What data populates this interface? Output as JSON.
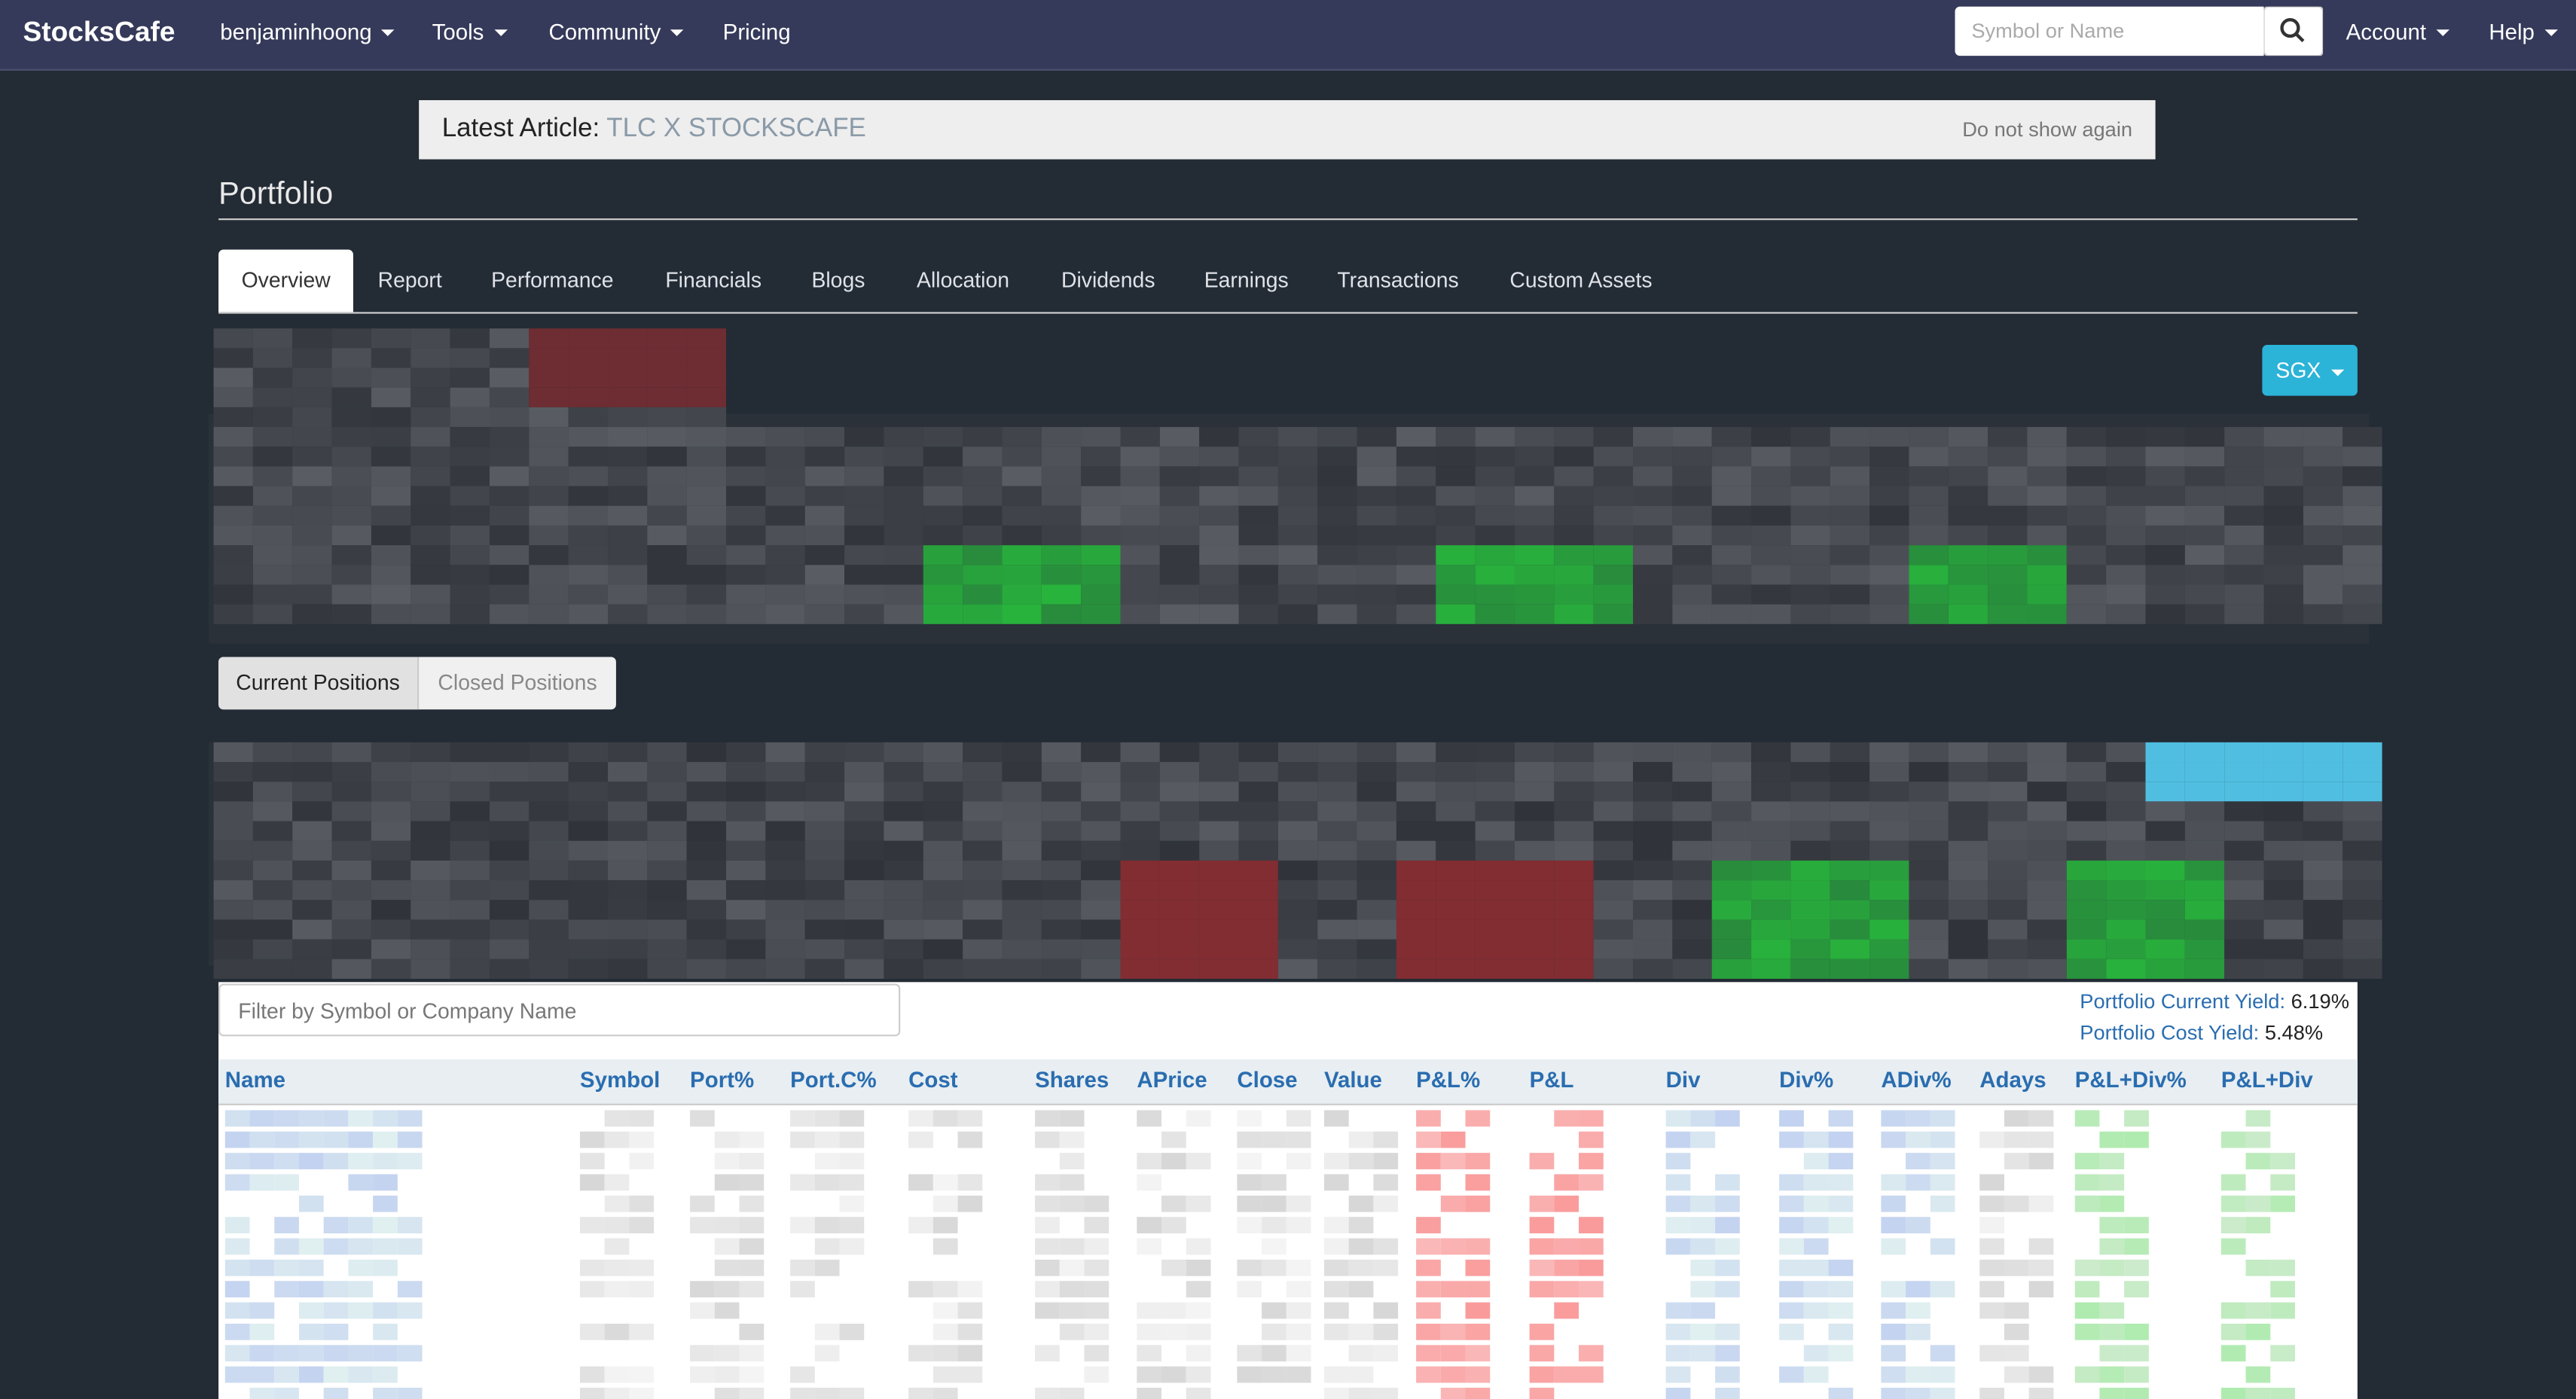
{
  "navbar": {
    "brand": "StocksCafe",
    "menu": [
      "benjaminhoong",
      "Tools",
      "Community",
      "Pricing"
    ],
    "search_placeholder": "Symbol or Name",
    "right_menu": [
      "Account",
      "Help"
    ]
  },
  "banner": {
    "label": "Latest Article:",
    "article": "TLC X STOCKSCAFE",
    "dismiss": "Do not show again"
  },
  "page": {
    "title": "Portfolio",
    "tabs": [
      "Overview",
      "Report",
      "Performance",
      "Financials",
      "Blogs",
      "Allocation",
      "Dividends",
      "Earnings",
      "Transactions",
      "Custom Assets"
    ],
    "market_button": "SGX",
    "position_toggle": [
      "Current Positions",
      "Closed Positions"
    ],
    "filter_placeholder": "Filter by Symbol or Company Name",
    "yields": [
      {
        "label": "Portfolio Current Yield:",
        "value": "6.19%"
      },
      {
        "label": "Portfolio Cost Yield:",
        "value": "5.48%"
      }
    ],
    "table": {
      "columns": [
        "Name",
        "Symbol",
        "Port%",
        "Port.C%",
        "Cost",
        "Shares",
        "APrice",
        "Close",
        "Value",
        "P&L%",
        "P&L",
        "Div",
        "Div%",
        "ADiv%",
        "Adays",
        "P&L+Div%",
        "P&L+Div"
      ]
    }
  }
}
